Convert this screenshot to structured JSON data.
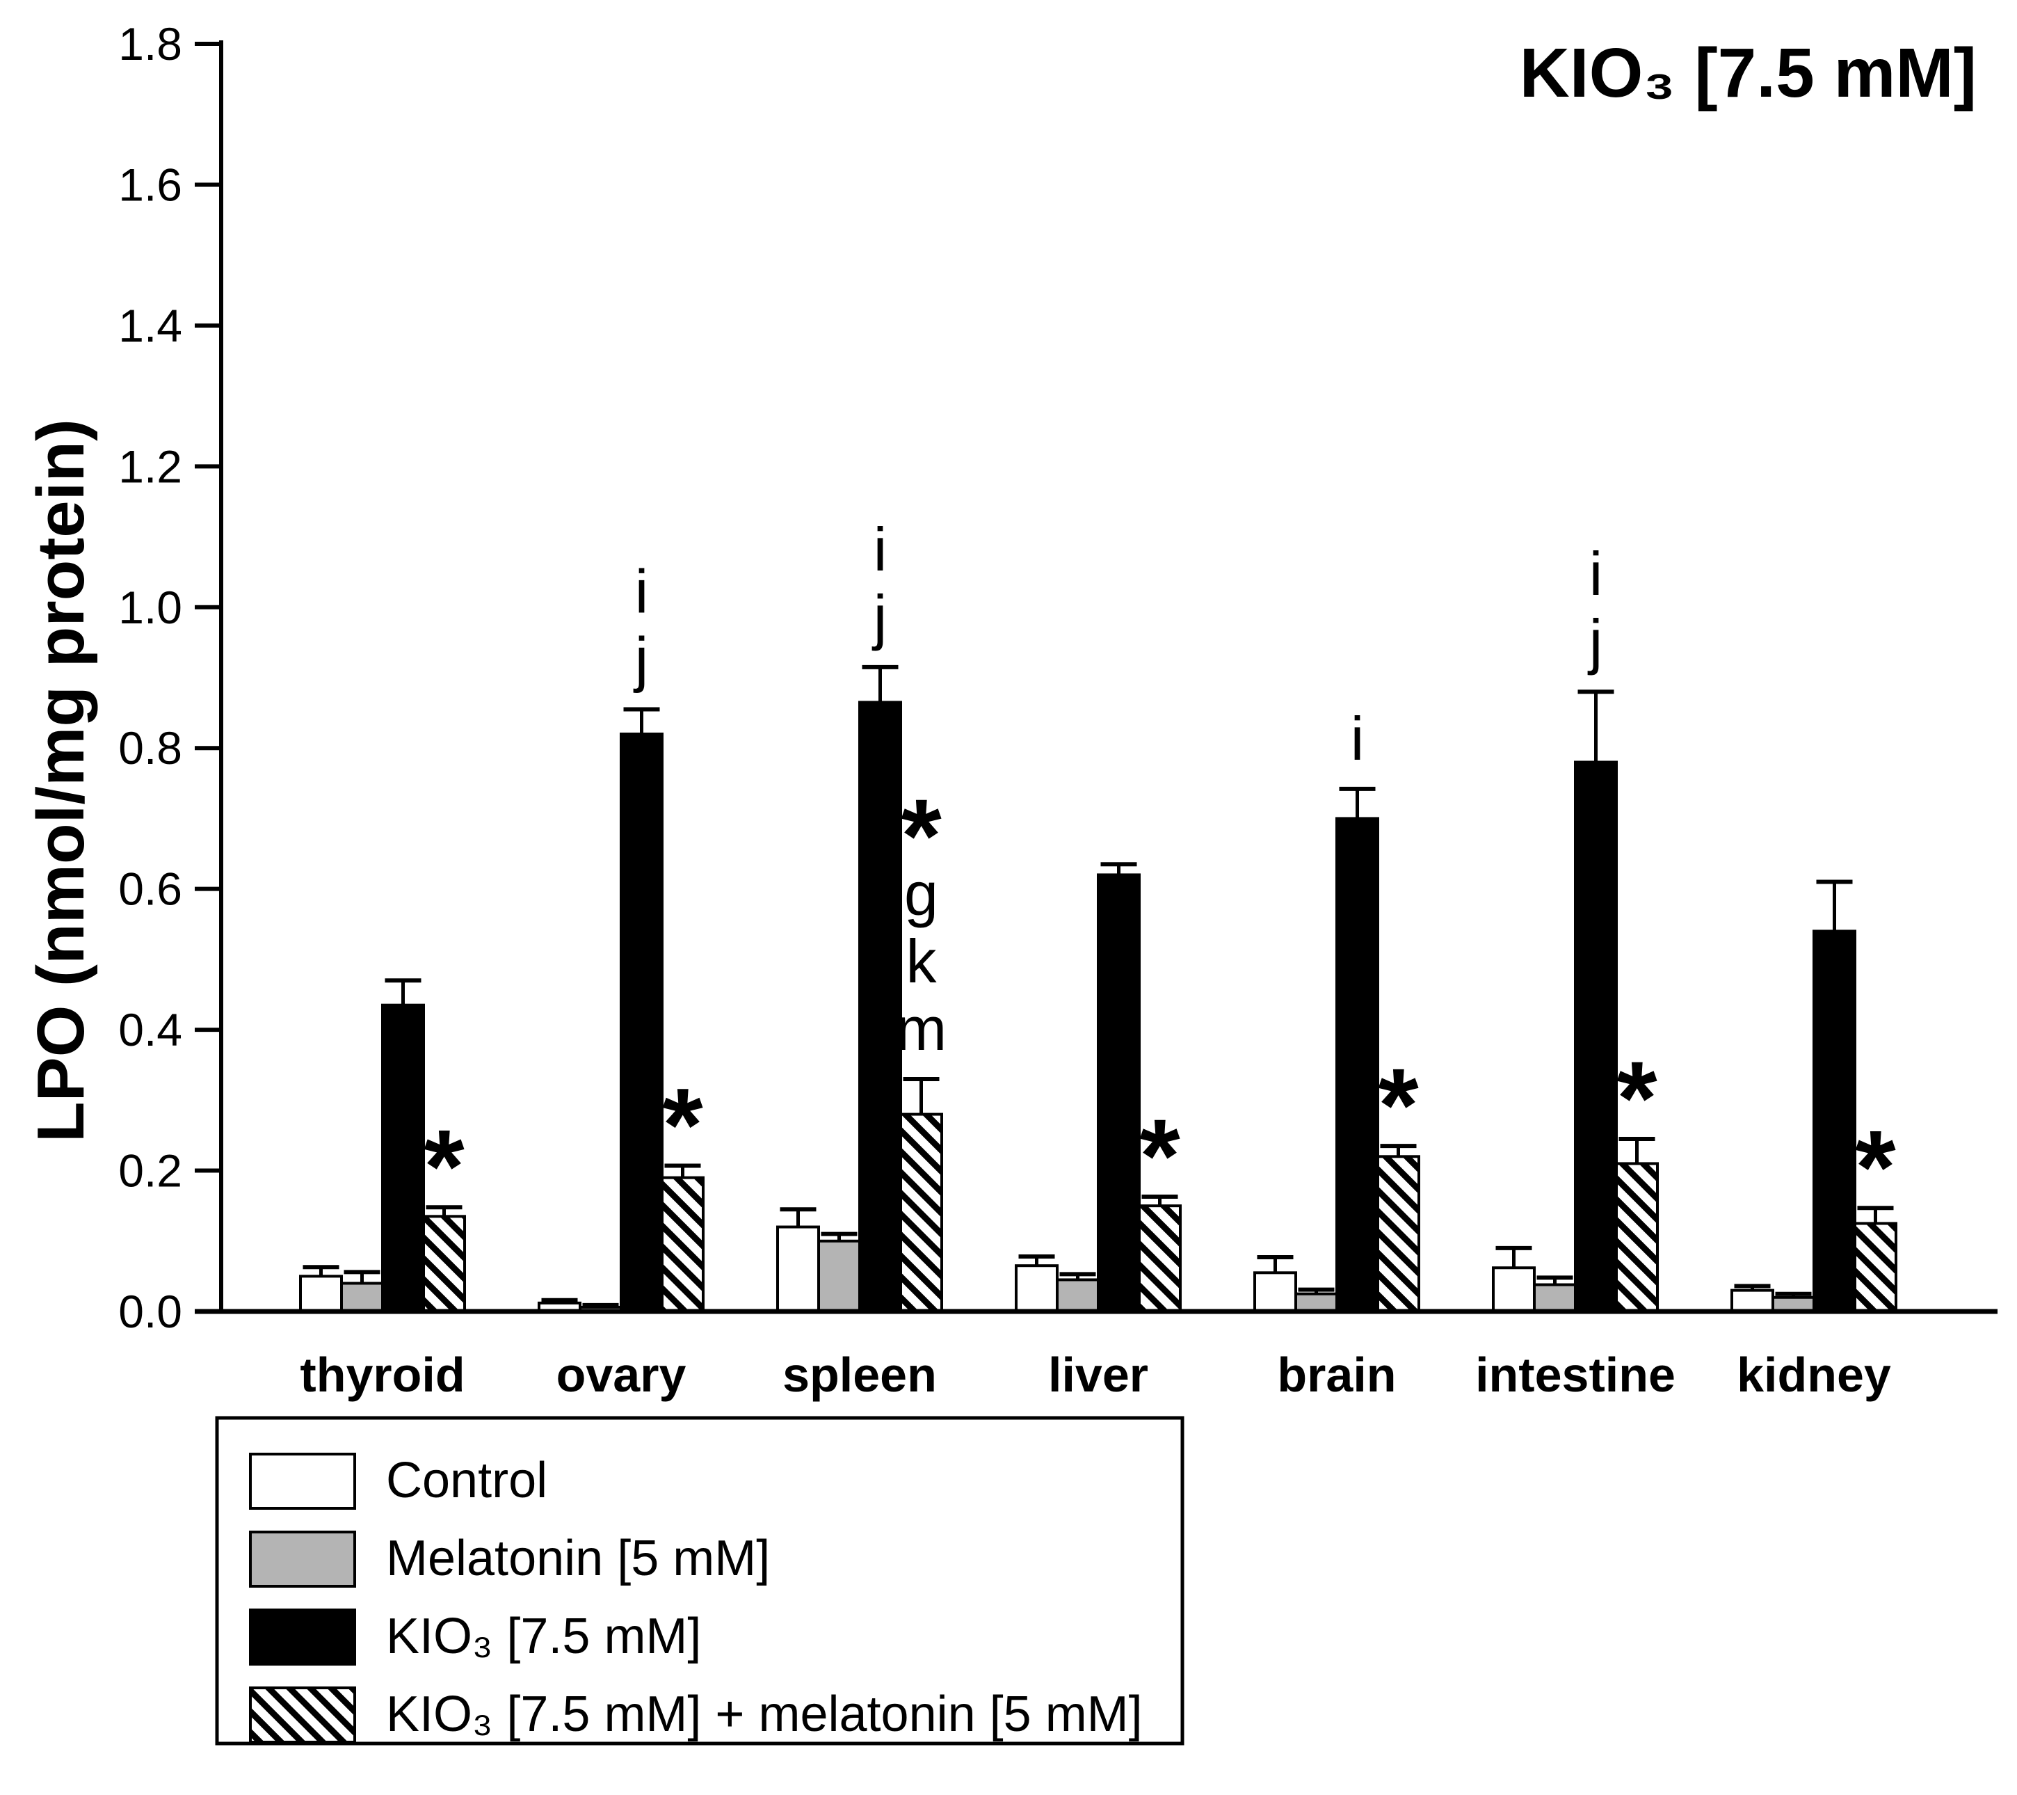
{
  "colors": {
    "bar_gray": "#b4b4b4",
    "ink": "#000000",
    "background": "#ffffff"
  },
  "chart_data": {
    "type": "bar",
    "title": "KIO₃ [7.5 mM]",
    "xlabel": "",
    "ylabel": "LPO (nmol/mg protein)",
    "ylim": [
      0,
      1.8
    ],
    "ytick_step": 0.2,
    "grid": false,
    "legend_position": "bottom-left boxed",
    "categories": [
      "thyroid",
      "ovary",
      "spleen",
      "liver",
      "brain",
      "intestine",
      "kidney"
    ],
    "series": [
      {
        "name": "Control",
        "style": "white",
        "values": [
          0.05,
          0.012,
          0.12,
          0.065,
          0.055,
          0.062,
          0.03
        ],
        "errors": [
          0.013,
          0.004,
          0.025,
          0.013,
          0.022,
          0.028,
          0.006
        ]
      },
      {
        "name": "Melatonin [5 mM]",
        "style": "gray",
        "values": [
          0.04,
          0.006,
          0.1,
          0.045,
          0.025,
          0.038,
          0.02
        ],
        "errors": [
          0.016,
          0.003,
          0.01,
          0.008,
          0.006,
          0.01,
          0.005
        ]
      },
      {
        "name": "KIO₃ [7.5 mM]",
        "style": "black",
        "values": [
          0.435,
          0.82,
          0.865,
          0.62,
          0.7,
          0.78,
          0.54
        ],
        "errors": [
          0.035,
          0.035,
          0.05,
          0.015,
          0.042,
          0.1,
          0.07
        ]
      },
      {
        "name": "KIO₃ [7.5 mM] + melatonin [5 mM]",
        "style": "hatched",
        "values": [
          0.135,
          0.19,
          0.28,
          0.15,
          0.22,
          0.21,
          0.125
        ],
        "errors": [
          0.013,
          0.017,
          0.05,
          0.013,
          0.015,
          0.035,
          0.022
        ]
      }
    ],
    "annotations": {
      "kio3_bar_letters": [
        [],
        [
          "i",
          "j"
        ],
        [
          "i",
          "j"
        ],
        [],
        [
          "i"
        ],
        [
          "i",
          "j"
        ],
        []
      ],
      "combo_bar_letters": [
        [
          "*"
        ],
        [
          "*"
        ],
        [
          "*",
          "g",
          "k",
          "m"
        ],
        [
          "*"
        ],
        [
          "*"
        ],
        [
          "*"
        ],
        [
          "*"
        ]
      ]
    }
  },
  "legend": {
    "items": [
      {
        "swatch": "white",
        "label": "Control"
      },
      {
        "swatch": "gray",
        "label": "Melatonin [5 mM]"
      },
      {
        "swatch": "black",
        "label": "KIO₃ [7.5 mM]"
      },
      {
        "swatch": "hatched",
        "label": "KIO₃ [7.5 mM] + melatonin [5 mM]"
      }
    ]
  }
}
